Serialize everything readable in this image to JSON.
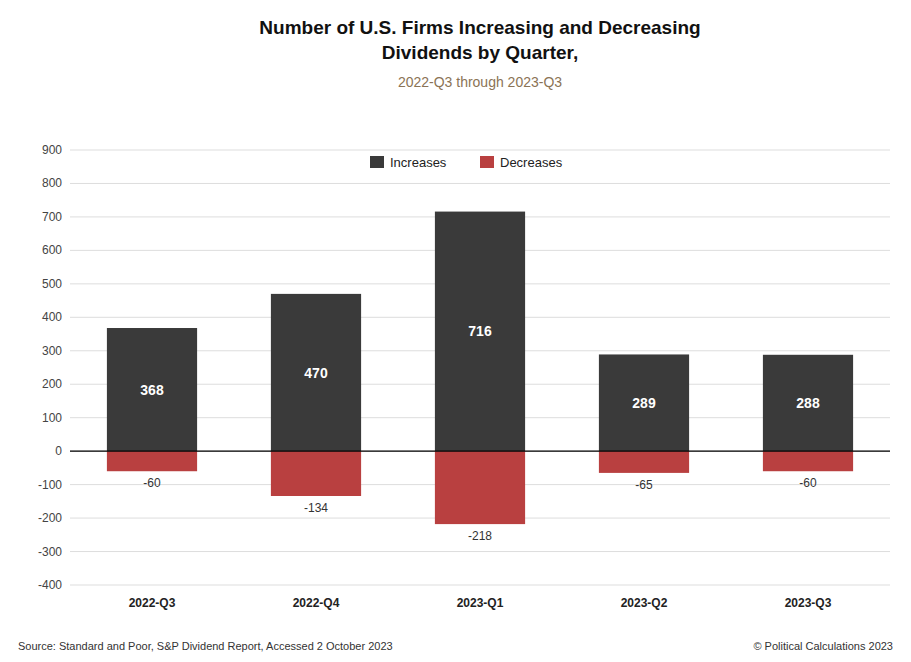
{
  "chart_data": {
    "type": "bar",
    "title": "Number of U.S. Firms Increasing and Decreasing\nDividends by Quarter,",
    "subtitle": "2022-Q3 through 2023-Q3",
    "annotations": [
      "Source: Standard and Poor, S&P Dividend Report, Accessed 2 October 2023",
      "© Political Calculations 2023"
    ],
    "categories": [
      "2022-Q3",
      "2022-Q4",
      "2023-Q1",
      "2023-Q2",
      "2023-Q3"
    ],
    "series": [
      {
        "name": "Increases",
        "color": "#3a3a3a",
        "values": [
          368,
          470,
          716,
          289,
          288
        ]
      },
      {
        "name": "Decreases",
        "color": "#b94040",
        "values": [
          -60,
          -134,
          -218,
          -65,
          -60
        ]
      }
    ],
    "stacked": true,
    "ylim": [
      -400,
      900
    ],
    "yticks": [
      -400,
      -300,
      -200,
      -100,
      0,
      100,
      200,
      300,
      400,
      500,
      600,
      700,
      800,
      900
    ],
    "grid": true,
    "legend": "top",
    "data_labels": true
  }
}
